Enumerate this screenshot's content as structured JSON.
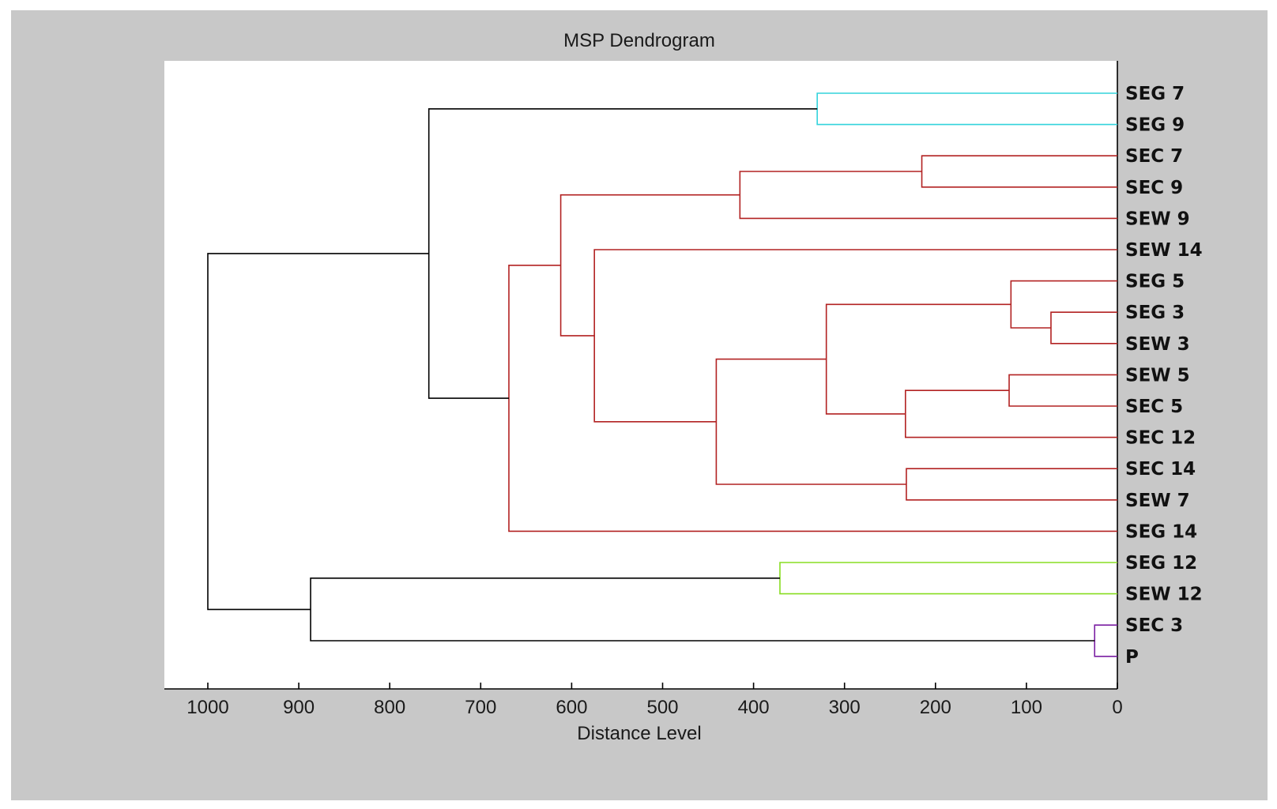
{
  "chart_data": {
    "type": "dendrogram",
    "title": "MSP Dendrogram",
    "xlabel": "Distance Level",
    "xlim": [
      1048,
      0
    ],
    "xticks": [
      1000,
      900,
      800,
      700,
      600,
      500,
      400,
      300,
      200,
      100,
      0
    ],
    "orientation": "leaves-right",
    "leaves": [
      "SEG 7",
      "SEG 9",
      "SEC 7",
      "SEC 9",
      "SEW 9",
      "SEW 14",
      "SEG 5",
      "SEG 3",
      "SEW 3",
      "SEW 5",
      "SEC 5",
      "SEC 12",
      "SEC 14",
      "SEW 7",
      "SEG 14",
      "SEG 12",
      "SEW 12",
      "SEC 3",
      "P"
    ],
    "colors": {
      "cyan": "#33d3dc",
      "red": "#b22222",
      "green": "#88dd22",
      "purple": "#7a1fa2",
      "black": "#000000"
    },
    "merges": [
      {
        "id": "m1",
        "children": [
          "SEG 7",
          "SEG 9"
        ],
        "distance": 330,
        "color": "cyan"
      },
      {
        "id": "m2",
        "children": [
          "SEC 7",
          "SEC 9"
        ],
        "distance": 215,
        "color": "red"
      },
      {
        "id": "m3",
        "children": [
          "m2",
          "SEW 9"
        ],
        "distance": 415,
        "color": "red"
      },
      {
        "id": "m4",
        "children": [
          "SEG 3",
          "SEW 3"
        ],
        "distance": 73,
        "color": "red"
      },
      {
        "id": "m5",
        "children": [
          "SEG 5",
          "m4"
        ],
        "distance": 117,
        "color": "red"
      },
      {
        "id": "m6",
        "children": [
          "SEW 5",
          "SEC 5"
        ],
        "distance": 119,
        "color": "red"
      },
      {
        "id": "m7",
        "children": [
          "m6",
          "SEC 12"
        ],
        "distance": 233,
        "color": "red"
      },
      {
        "id": "m8",
        "children": [
          "m5",
          "m7"
        ],
        "distance": 320,
        "color": "red"
      },
      {
        "id": "m9",
        "children": [
          "SEC 14",
          "SEW 7"
        ],
        "distance": 232,
        "color": "red"
      },
      {
        "id": "m10",
        "children": [
          "m8",
          "m9"
        ],
        "distance": 441,
        "color": "red"
      },
      {
        "id": "m11",
        "children": [
          "SEW 14",
          "m10"
        ],
        "distance": 575,
        "color": "red"
      },
      {
        "id": "m12",
        "children": [
          "m3",
          "m11"
        ],
        "distance": 612,
        "color": "red"
      },
      {
        "id": "m13",
        "children": [
          "m12",
          "SEG 14"
        ],
        "distance": 669,
        "color": "red"
      },
      {
        "id": "m14",
        "children": [
          "m1",
          "m13"
        ],
        "distance": 757,
        "color": "black"
      },
      {
        "id": "m15",
        "children": [
          "SEG 12",
          "SEW 12"
        ],
        "distance": 371,
        "color": "green"
      },
      {
        "id": "m16",
        "children": [
          "SEC 3",
          "P"
        ],
        "distance": 25,
        "color": "purple"
      },
      {
        "id": "m17",
        "children": [
          "m15",
          "m16"
        ],
        "distance": 887,
        "color": "black"
      },
      {
        "id": "m18",
        "children": [
          "m14",
          "m17"
        ],
        "distance": 1000,
        "color": "black"
      }
    ]
  }
}
